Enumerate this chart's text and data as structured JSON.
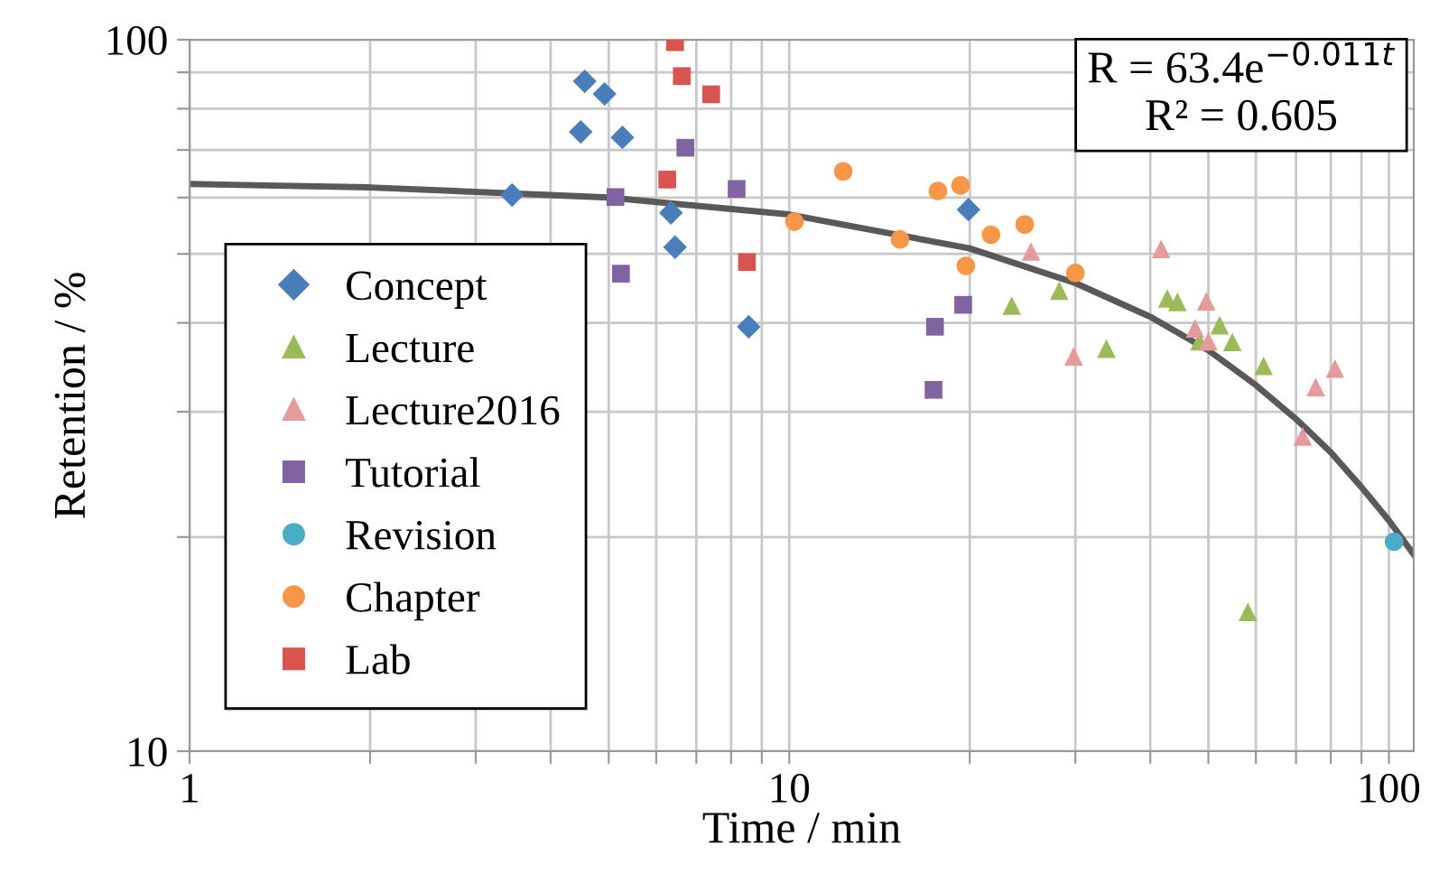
{
  "chart_data": {
    "type": "scatter",
    "xlabel": "Time / min",
    "ylabel": "Retention / %",
    "log": "xy",
    "grid": true,
    "legend": "lower left",
    "xlim": [
      1,
      110
    ],
    "ylim": [
      10,
      100
    ],
    "xticks": [
      1,
      {
        "value": 2,
        "label": null
      },
      {
        "value": 3,
        "label": null
      },
      {
        "value": 4,
        "label": null
      },
      {
        "value": 5,
        "label": null
      },
      {
        "value": 6,
        "label": null
      },
      {
        "value": 7,
        "label": null
      },
      {
        "value": 8,
        "label": null
      },
      {
        "value": 9,
        "label": null
      },
      10,
      {
        "value": 20,
        "label": null
      },
      {
        "value": 30,
        "label": null
      },
      {
        "value": 40,
        "label": null
      },
      {
        "value": 50,
        "label": null
      },
      {
        "value": 60,
        "label": null
      },
      {
        "value": 70,
        "label": null
      },
      {
        "value": 80,
        "label": null
      },
      {
        "value": 90,
        "label": null
      },
      100
    ],
    "yticks": [
      10,
      {
        "value": 20,
        "label": null
      },
      {
        "value": 30,
        "label": null
      },
      {
        "value": 40,
        "label": null
      },
      {
        "value": 50,
        "label": null
      },
      {
        "value": 60,
        "label": null
      },
      {
        "value": 70,
        "label": null
      },
      {
        "value": 80,
        "label": null
      },
      {
        "value": 90,
        "label": null
      },
      100
    ],
    "annotations": [
      "R = 63.4e$^{−0.011t}$\nR² = 0.605"
    ],
    "series": [
      {
        "name": "Concept",
        "color": "#4a7ebb",
        "marker": "diamond",
        "x": [
          3.45,
          4.56,
          4.92,
          4.49,
          5.27,
          6.35,
          6.45,
          8.56,
          19.9
        ],
        "values": [
          60.5,
          87.4,
          83.9,
          74.2,
          72.9,
          57.1,
          51.1,
          39.5,
          57.7
        ]
      },
      {
        "name": "Lecture",
        "color": "#9bbb59",
        "marker": "triangle",
        "x": [
          23.5,
          28.2,
          33.8,
          42.7,
          44.4,
          48.3,
          52.2,
          54.8,
          61.8,
          58.2
        ],
        "values": [
          42.3,
          44.4,
          36.8,
          43.3,
          42.8,
          37.7,
          39.7,
          37.6,
          34.8,
          15.7
        ]
      },
      {
        "name": "Lecture2016",
        "color": "#e59a9c",
        "marker": "triangle",
        "x": [
          25.3,
          29.8,
          41.7,
          49.6,
          47.5,
          50.0,
          71.8,
          75.5,
          81.3
        ],
        "values": [
          50.4,
          35.9,
          50.8,
          42.9,
          39.3,
          37.7,
          27.7,
          32.5,
          34.5
        ]
      },
      {
        "name": "Tutorial",
        "color": "#8064a2",
        "marker": "square",
        "x": [
          6.71,
          5.13,
          8.17,
          5.24,
          17.5,
          19.5,
          17.4
        ],
        "values": [
          70.5,
          60.1,
          61.7,
          46.9,
          39.5,
          42.4,
          32.2
        ]
      },
      {
        "name": "Revision",
        "color": "#4bacc6",
        "marker": "circle",
        "x": [
          102
        ],
        "values": [
          19.7
        ]
      },
      {
        "name": "Chapter",
        "color": "#f79646",
        "marker": "circle",
        "x": [
          10.2,
          12.3,
          15.3,
          17.7,
          19.3,
          19.7,
          21.7,
          24.7,
          30.0
        ],
        "values": [
          55.5,
          65.3,
          52.4,
          61.3,
          62.4,
          48.1,
          53.2,
          55.0,
          47.0
        ]
      },
      {
        "name": "Lab",
        "color": "#d9534f",
        "marker": "square",
        "x": [
          6.45,
          6.62,
          7.41,
          6.26,
          8.5
        ],
        "values": [
          99.2,
          88.9,
          83.8,
          63.6,
          48.7
        ]
      },
      {
        "type": "line",
        "color": "#595959",
        "marker": "none",
        "x": [
          1,
          2,
          5,
          10,
          20,
          30,
          40,
          50,
          60,
          70,
          80,
          90,
          100,
          110
        ],
        "values": [
          62.7,
          62.0,
          60.0,
          56.8,
          50.9,
          45.5,
          40.8,
          36.6,
          32.7,
          29.3,
          26.3,
          23.5,
          21.1,
          18.9
        ]
      }
    ]
  }
}
